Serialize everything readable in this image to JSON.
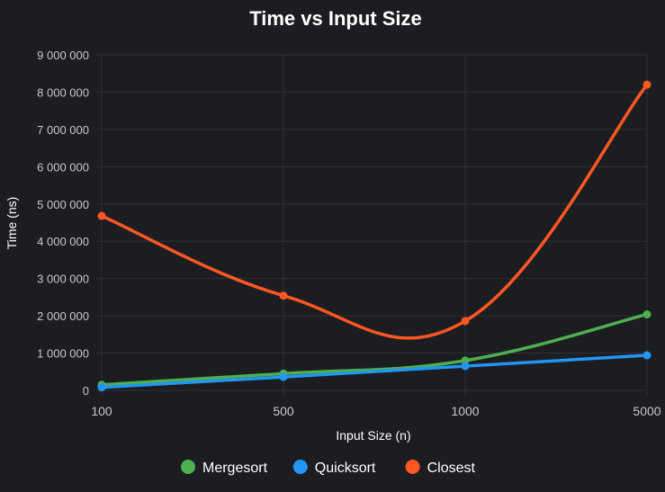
{
  "chart_data": {
    "type": "line",
    "title": "Time vs Input Size",
    "xlabel": "Input Size (n)",
    "ylabel": "Time (ns)",
    "categories": [
      "100",
      "500",
      "1000",
      "5000"
    ],
    "ylim": [
      0,
      9000000
    ],
    "yticks": [
      0,
      1000000,
      2000000,
      3000000,
      4000000,
      5000000,
      6000000,
      7000000,
      8000000,
      9000000
    ],
    "ytick_labels": [
      "0",
      "1 000 000",
      "2 000 000",
      "3 000 000",
      "4 000 000",
      "5 000 000",
      "6 000 000",
      "7 000 000",
      "8 000 000",
      "9 000 000"
    ],
    "grid": true,
    "legend_position": "bottom",
    "series": [
      {
        "name": "Mergesort",
        "color": "#4caf50",
        "values": [
          150000,
          450000,
          800000,
          2040000
        ]
      },
      {
        "name": "Quicksort",
        "color": "#2196f3",
        "values": [
          80000,
          360000,
          650000,
          940000
        ]
      },
      {
        "name": "Closest",
        "color": "#ff5722",
        "values": [
          4680000,
          2540000,
          1860000,
          8200000
        ]
      }
    ]
  }
}
